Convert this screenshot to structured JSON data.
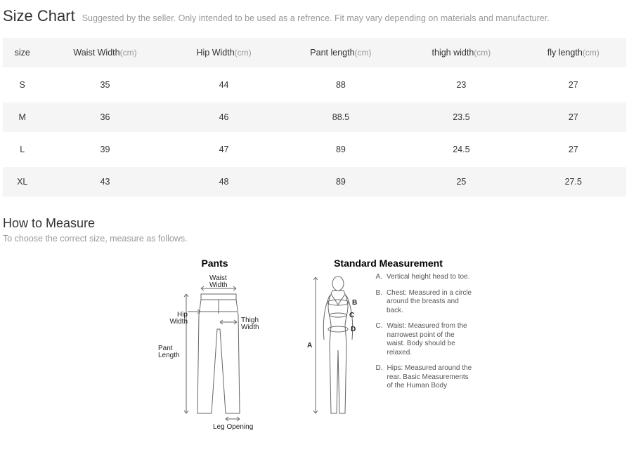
{
  "header": {
    "title": "Size Chart",
    "subtitle": "Suggested by the seller. Only intended to be used as a refrence. Fit may vary depending on materials and manufacturer."
  },
  "table": {
    "columns": [
      {
        "label": "size",
        "unit": ""
      },
      {
        "label": "Waist Width",
        "unit": "(cm)"
      },
      {
        "label": "Hip Width",
        "unit": "(cm)"
      },
      {
        "label": "Pant length",
        "unit": "(cm)"
      },
      {
        "label": "thigh width",
        "unit": "(cm)"
      },
      {
        "label": "fly length",
        "unit": "(cm)"
      }
    ],
    "rows": [
      [
        "S",
        "35",
        "44",
        "88",
        "23",
        "27"
      ],
      [
        "M",
        "36",
        "46",
        "88.5",
        "23.5",
        "27"
      ],
      [
        "L",
        "39",
        "47",
        "89",
        "24.5",
        "27"
      ],
      [
        "XL",
        "43",
        "48",
        "89",
        "25",
        "27.5"
      ]
    ],
    "header_bg": "#f5f5f5",
    "row_odd_bg": "#ffffff",
    "row_even_bg": "#f5f5f5",
    "text_color": "#333333",
    "unit_color": "#999999"
  },
  "how": {
    "title": "How to Measure",
    "subtitle": "To choose the correct size, measure as follows."
  },
  "diagrams": {
    "pants": {
      "title": "Pants",
      "labels": {
        "waist_width": "Waist\nWidth",
        "hip_width": "Hip\nWidth",
        "thigh_width": "Thigh\nWidth",
        "pant_length": "Pant\nLength",
        "leg_opening": "Leg Opening"
      },
      "stroke": "#666666",
      "line_width": 1
    },
    "standard": {
      "title": "Standard Measurement",
      "marks": {
        "A": "A",
        "B": "B",
        "C": "C",
        "D": "D"
      },
      "legend": [
        {
          "key": "A.",
          "text": "Vertical height head to toe."
        },
        {
          "key": "B.",
          "text": "Chest: Measured in a circle around the breasts and back."
        },
        {
          "key": "C.",
          "text": "Waist: Measured from the narrowest point of the waist. Body should be relaxed."
        },
        {
          "key": "D.",
          "text": "Hips: Measured around the rear. Basic Measurements of the Human Body"
        }
      ],
      "stroke": "#666666",
      "line_width": 1
    }
  }
}
